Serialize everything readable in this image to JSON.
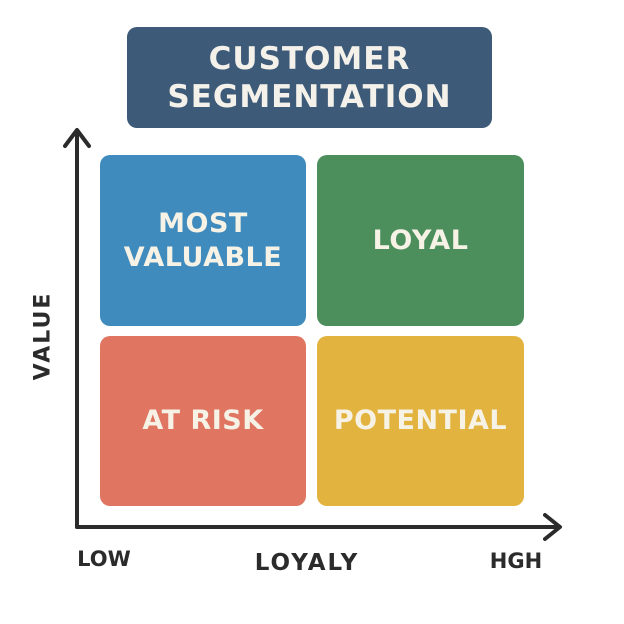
{
  "title": {
    "line1": "CUSTOMER",
    "line2": "SEGMENTATION"
  },
  "quadrants": {
    "top_left": {
      "line1": "MOST",
      "line2": "VALUABLE"
    },
    "top_right": {
      "label": "LOYAL"
    },
    "bottom_left": {
      "label": "AT RISK"
    },
    "bottom_right": {
      "label": "POTENTIAL"
    }
  },
  "axes": {
    "y_label": "VALUE",
    "x_label": "LOYALY",
    "x_low": "LOW",
    "x_high": "HGH"
  },
  "colors": {
    "title_bg": "#3d5a78",
    "most_valuable": "#3f8bbd",
    "loyal": "#4c8f5c",
    "at_risk": "#e07562",
    "potential": "#e3b33f",
    "axis": "#2b2b2b",
    "text_light": "#f6f2e6"
  }
}
